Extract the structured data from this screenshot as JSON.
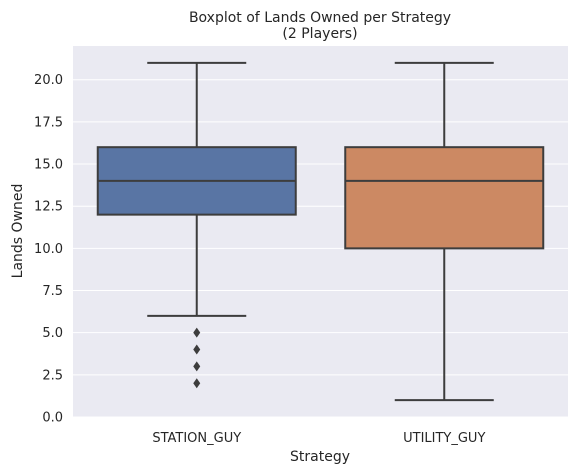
{
  "chart_data": {
    "type": "box",
    "title": "Boxplot of Lands Owned per Strategy",
    "subtitle": "(2 Players)",
    "xlabel": "Strategy",
    "ylabel": "Lands Owned",
    "ylim": [
      0,
      22
    ],
    "yticks": [
      0.0,
      2.5,
      5.0,
      7.5,
      10.0,
      12.5,
      15.0,
      17.5,
      20.0
    ],
    "ytick_labels": [
      "0.0",
      "2.5",
      "5.0",
      "7.5",
      "10.0",
      "12.5",
      "15.0",
      "17.5",
      "20.0"
    ],
    "grid": true,
    "categories": [
      "STATION_GUY",
      "UTILITY_GUY"
    ],
    "boxes": [
      {
        "category": "STATION_GUY",
        "whislo": 6,
        "q1": 12,
        "median": 14,
        "q3": 16,
        "whishi": 21,
        "fliers": [
          5,
          4,
          3,
          2
        ],
        "color": "#5975a4"
      },
      {
        "category": "UTILITY_GUY",
        "whislo": 1,
        "q1": 10,
        "median": 14,
        "q3": 16,
        "whishi": 21,
        "fliers": [],
        "color": "#cc8963"
      }
    ],
    "colors": {
      "background": "#eaeaf2",
      "grid": "#ffffff",
      "lines": "#3d3d3d"
    }
  }
}
